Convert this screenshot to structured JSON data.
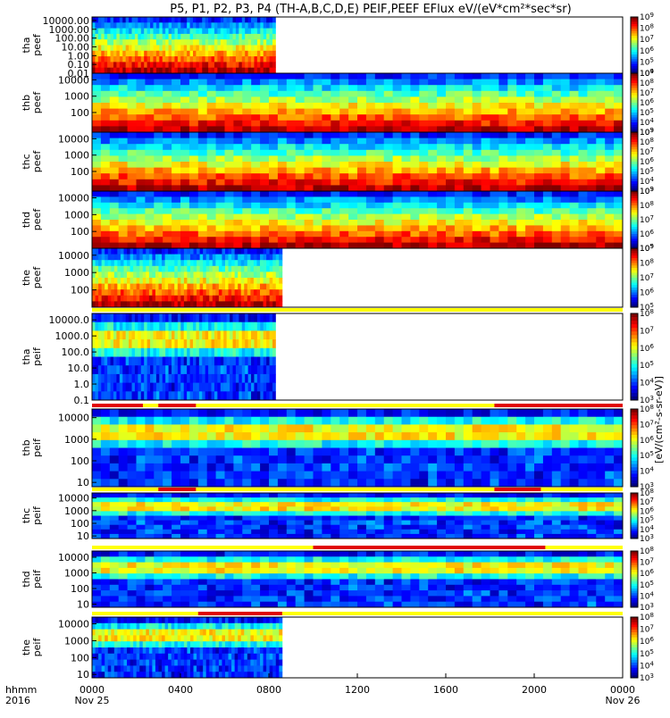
{
  "title": "P5, P1, P2, P3, P4 (TH-A,B,C,D,E) PEIF,PEEF EFlux eV/(eV*cm²*sec*sr)",
  "colorbar_unit": "[eV/(cm²-s-sr-eV)]",
  "x_axis": {
    "row_label": "hhmm",
    "year_label": "2016",
    "ticks": [
      {
        "label": "0000",
        "sub": "Nov 25",
        "hour": 0
      },
      {
        "label": "0400",
        "sub": "",
        "hour": 4
      },
      {
        "label": "0800",
        "sub": "",
        "hour": 8
      },
      {
        "label": "1200",
        "sub": "",
        "hour": 12
      },
      {
        "label": "1600",
        "sub": "",
        "hour": 16
      },
      {
        "label": "2000",
        "sub": "",
        "hour": 20
      },
      {
        "label": "0000",
        "sub": "Nov 26",
        "hour": 24
      }
    ]
  },
  "chart_data": [
    {
      "type": "heatmap",
      "probe": "tha",
      "species": "peef",
      "y_label_1": "tha",
      "y_label_2": "peef",
      "y_ticks": [
        "10000.00",
        "1000.00",
        "100.00",
        "10.00",
        "1.00",
        "0.10",
        "0.01"
      ],
      "y_log_range": [
        -2,
        4.4
      ],
      "data_end_hour": 8.3,
      "cb_min_exp": 4,
      "cb_max_exp": 9,
      "palette": "electron",
      "bar": null
    },
    {
      "type": "heatmap",
      "probe": "thb",
      "species": "peef",
      "y_label_1": "thb",
      "y_label_2": "peef",
      "y_ticks": [
        "10000",
        "1000",
        "100"
      ],
      "y_log_range": [
        0.8,
        4.4
      ],
      "data_end_hour": 24,
      "cb_min_exp": 3,
      "cb_max_exp": 9,
      "palette": "electron",
      "bar": null
    },
    {
      "type": "heatmap",
      "probe": "thc",
      "species": "peef",
      "y_label_1": "thc",
      "y_label_2": "peef",
      "y_ticks": [
        "10000",
        "1000",
        "100"
      ],
      "y_log_range": [
        0.8,
        4.4
      ],
      "data_end_hour": 24,
      "cb_min_exp": 3,
      "cb_max_exp": 9,
      "palette": "electron",
      "bar": null
    },
    {
      "type": "heatmap",
      "probe": "thd",
      "species": "peef",
      "y_label_1": "thd",
      "y_label_2": "peef",
      "y_ticks": [
        "10000",
        "1000",
        "100"
      ],
      "y_log_range": [
        1,
        4.4
      ],
      "data_end_hour": 24,
      "cb_min_exp": 5,
      "cb_max_exp": 9,
      "palette": "electron",
      "bar": null
    },
    {
      "type": "heatmap",
      "probe": "the",
      "species": "peef",
      "y_label_1": "the",
      "y_label_2": "peef",
      "y_ticks": [
        "10000",
        "1000",
        "100"
      ],
      "y_log_range": [
        1,
        4.4
      ],
      "data_end_hour": 8.6,
      "cb_min_exp": 5,
      "cb_max_exp": 9,
      "palette": "electron",
      "bar": null
    },
    {
      "type": "heatmap",
      "probe": "tha",
      "species": "peif",
      "y_label_1": "tha",
      "y_label_2": "peif",
      "y_ticks": [
        "10000.0",
        "1000.0",
        "100.0",
        "10.0",
        "1.0",
        "0.1"
      ],
      "y_log_range": [
        -1,
        4.4
      ],
      "data_end_hour": 8.3,
      "cb_min_exp": 3,
      "cb_max_exp": 8,
      "palette": "ion",
      "bar": {
        "base": "yellow",
        "red": []
      }
    },
    {
      "type": "heatmap",
      "probe": "thb",
      "species": "peif",
      "y_label_1": "thb",
      "y_label_2": "peif",
      "y_ticks": [
        "10000",
        "1000",
        "100",
        "10"
      ],
      "y_log_range": [
        0.8,
        4.4
      ],
      "data_end_hour": 24,
      "cb_min_exp": 3,
      "cb_max_exp": 8,
      "palette": "ion",
      "bar": {
        "base": "yellow",
        "red": [
          [
            0,
            2.3
          ],
          [
            3.0,
            4.7
          ],
          [
            18.2,
            24
          ]
        ]
      }
    },
    {
      "type": "heatmap",
      "probe": "thc",
      "species": "peif",
      "y_label_1": "thc",
      "y_label_2": "peif",
      "y_ticks": [
        "10000",
        "1000",
        "100",
        "10"
      ],
      "y_log_range": [
        0.8,
        4.4
      ],
      "data_end_hour": 24,
      "cb_min_exp": 3,
      "cb_max_exp": 8,
      "palette": "ion",
      "bar": {
        "base": "yellow",
        "red": [
          [
            3.0,
            4.7
          ],
          [
            18.2,
            20.3
          ]
        ]
      }
    },
    {
      "type": "heatmap",
      "probe": "thd",
      "species": "peif",
      "y_label_1": "thd",
      "y_label_2": "peif",
      "y_ticks": [
        "10000",
        "1000",
        "100",
        "10"
      ],
      "y_log_range": [
        0.8,
        4.4
      ],
      "data_end_hour": 24,
      "cb_min_exp": 3,
      "cb_max_exp": 8,
      "palette": "ion",
      "bar": {
        "base": "yellow",
        "red": [
          [
            10,
            20.5
          ]
        ]
      }
    },
    {
      "type": "heatmap",
      "probe": "the",
      "species": "peif",
      "y_label_1": "the",
      "y_label_2": "peif",
      "y_ticks": [
        "10000",
        "1000",
        "100",
        "10"
      ],
      "y_log_range": [
        0.8,
        4.4
      ],
      "data_end_hour": 8.6,
      "cb_min_exp": 3,
      "cb_max_exp": 8,
      "palette": "ion",
      "bar": {
        "base": "yellow",
        "red": [
          [
            4.8,
            8.6
          ]
        ]
      }
    }
  ]
}
